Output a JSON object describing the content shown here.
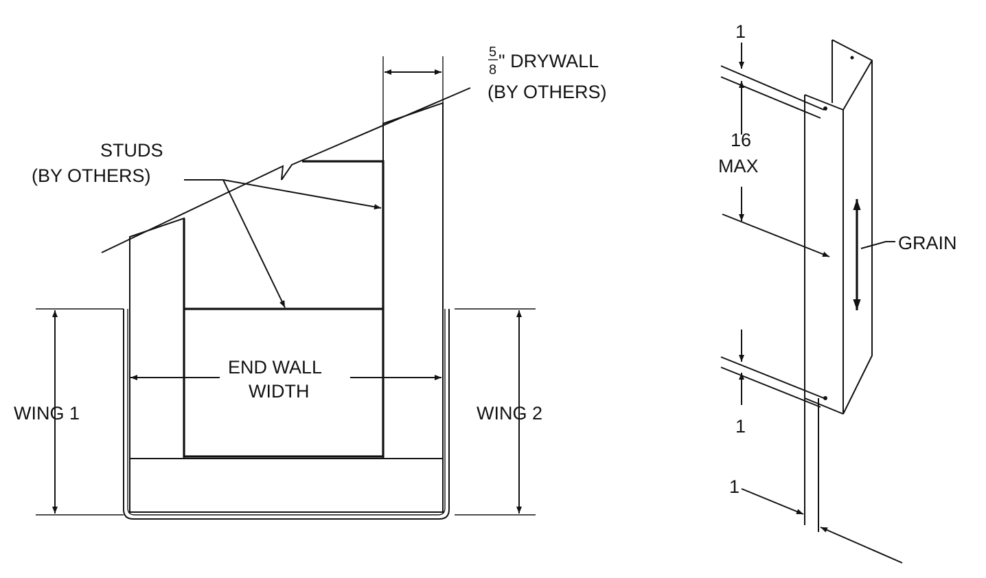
{
  "colors": {
    "ink": "#111111",
    "background": "#ffffff"
  },
  "labels": {
    "drywall_numerator": "5",
    "drywall_denominator": "8",
    "drywall_line1": "\" DRYWALL",
    "drywall_line2": "(BY OTHERS)",
    "studs_line1": "STUDS",
    "studs_line2": "(BY OTHERS)",
    "end_wall_line1": "END WALL",
    "end_wall_line2": "WIDTH",
    "wing_1": "WING 1",
    "wing_2": "WING 2",
    "top_spacing": "1",
    "max_spacing_value": "16",
    "max_spacing_label": "MAX",
    "bottom_spacing": "1",
    "thickness": "1",
    "grain": "GRAIN"
  }
}
